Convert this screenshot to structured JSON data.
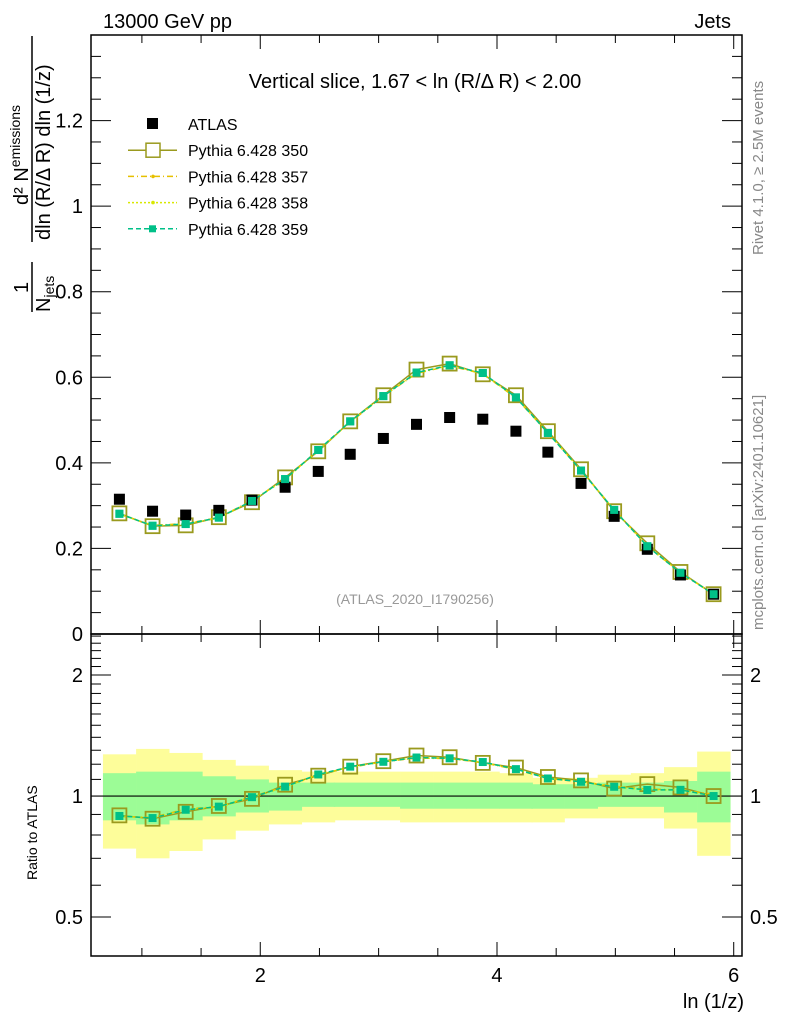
{
  "header": {
    "left": "13000 GeV pp",
    "right": "Jets"
  },
  "side": {
    "rivet": "Rivet 4.1.0, ≥ 2.5M events",
    "mcplots": "mcplots.cern.ch [arXiv:2401.10621]"
  },
  "ylabel": {
    "num1": "1",
    "den1": "N",
    "den1_sub": "jets",
    "num2": "d² N",
    "num2_sub": "emissions",
    "den2": "dln (R/Δ R) dln (1/z)"
  },
  "ratio_ylabel": "Ratio to ATLAS",
  "watermark": "(ATLAS_2020_I1790256)",
  "chart_data": {
    "type": "scatter",
    "title": "Vertical slice, 1.67 < ln (R/Δ R) < 2.00",
    "xlabel": "ln (1/z)",
    "xlim": [
      0.57,
      6.07
    ],
    "ylim": [
      0,
      1.4
    ],
    "ratio_ylim": [
      0.4,
      2.53
    ],
    "ratio_scale": "log",
    "x_ticks": [
      "2",
      "4",
      "6"
    ],
    "x_tick_values": [
      2,
      4,
      6
    ],
    "y_ticks": [
      "0",
      "0.2",
      "0.4",
      "0.6",
      "0.8",
      "1",
      "1.2"
    ],
    "y_tick_values": [
      0,
      0.2,
      0.4,
      0.6,
      0.8,
      1.0,
      1.2
    ],
    "ratio_ticks": [
      "0.5",
      "1",
      "2"
    ],
    "ratio_tick_values": [
      0.5,
      1,
      2
    ],
    "legend_position": "top-left",
    "x": [
      0.81,
      1.09,
      1.37,
      1.65,
      1.93,
      2.21,
      2.49,
      2.76,
      3.04,
      3.32,
      3.6,
      3.88,
      4.16,
      4.43,
      4.71,
      4.99,
      5.27,
      5.55,
      5.83
    ],
    "bin_halfwidth": 0.139,
    "series": [
      {
        "name": "ATLAS",
        "color": "#000000",
        "style": "data",
        "values": [
          0.315,
          0.287,
          0.278,
          0.289,
          0.313,
          0.343,
          0.38,
          0.42,
          0.457,
          0.49,
          0.506,
          0.502,
          0.474,
          0.425,
          0.352,
          0.275,
          0.198,
          0.138,
          0.093
        ]
      },
      {
        "name": "Pythia 6.428 350",
        "color": "#9a9a1e",
        "style": "solid-open-square",
        "values": [
          0.282,
          0.252,
          0.254,
          0.273,
          0.308,
          0.366,
          0.427,
          0.497,
          0.558,
          0.618,
          0.632,
          0.607,
          0.558,
          0.474,
          0.385,
          0.287,
          0.212,
          0.145,
          0.093
        ]
      },
      {
        "name": "Pythia 6.428 357",
        "color": "#e6c000",
        "style": "dashdot",
        "values": [
          0.28,
          0.254,
          0.258,
          0.272,
          0.312,
          0.362,
          0.43,
          0.495,
          0.556,
          0.609,
          0.627,
          0.608,
          0.552,
          0.47,
          0.382,
          0.291,
          0.206,
          0.143,
          0.094
        ]
      },
      {
        "name": "Pythia 6.428 358",
        "color": "#d8e800",
        "style": "dotted",
        "values": [
          0.281,
          0.253,
          0.257,
          0.271,
          0.311,
          0.361,
          0.429,
          0.496,
          0.557,
          0.61,
          0.628,
          0.609,
          0.553,
          0.471,
          0.382,
          0.29,
          0.205,
          0.143,
          0.093
        ]
      },
      {
        "name": "Pythia 6.428 359",
        "color": "#00c088",
        "style": "dashed",
        "values": [
          0.281,
          0.253,
          0.257,
          0.272,
          0.311,
          0.362,
          0.43,
          0.497,
          0.556,
          0.611,
          0.628,
          0.61,
          0.553,
          0.47,
          0.382,
          0.29,
          0.205,
          0.143,
          0.093
        ]
      }
    ],
    "band_outer": {
      "color": "#fdfd9a",
      "hi": [
        1.27,
        1.31,
        1.28,
        1.23,
        1.19,
        1.16,
        1.15,
        1.15,
        1.15,
        1.15,
        1.15,
        1.15,
        1.14,
        1.11,
        1.11,
        1.13,
        1.14,
        1.18,
        1.29
      ],
      "lo": [
        0.74,
        0.7,
        0.73,
        0.78,
        0.82,
        0.85,
        0.86,
        0.87,
        0.87,
        0.86,
        0.86,
        0.86,
        0.86,
        0.86,
        0.88,
        0.88,
        0.88,
        0.83,
        0.71
      ]
    },
    "band_inner": {
      "color": "#9cfc96",
      "hi": [
        1.14,
        1.15,
        1.15,
        1.12,
        1.1,
        1.08,
        1.08,
        1.08,
        1.08,
        1.08,
        1.08,
        1.08,
        1.08,
        1.07,
        1.07,
        1.08,
        1.08,
        1.09,
        1.15
      ],
      "lo": [
        0.87,
        0.85,
        0.87,
        0.89,
        0.91,
        0.92,
        0.94,
        0.94,
        0.94,
        0.93,
        0.93,
        0.93,
        0.93,
        0.93,
        0.93,
        0.94,
        0.94,
        0.91,
        0.86
      ]
    }
  }
}
